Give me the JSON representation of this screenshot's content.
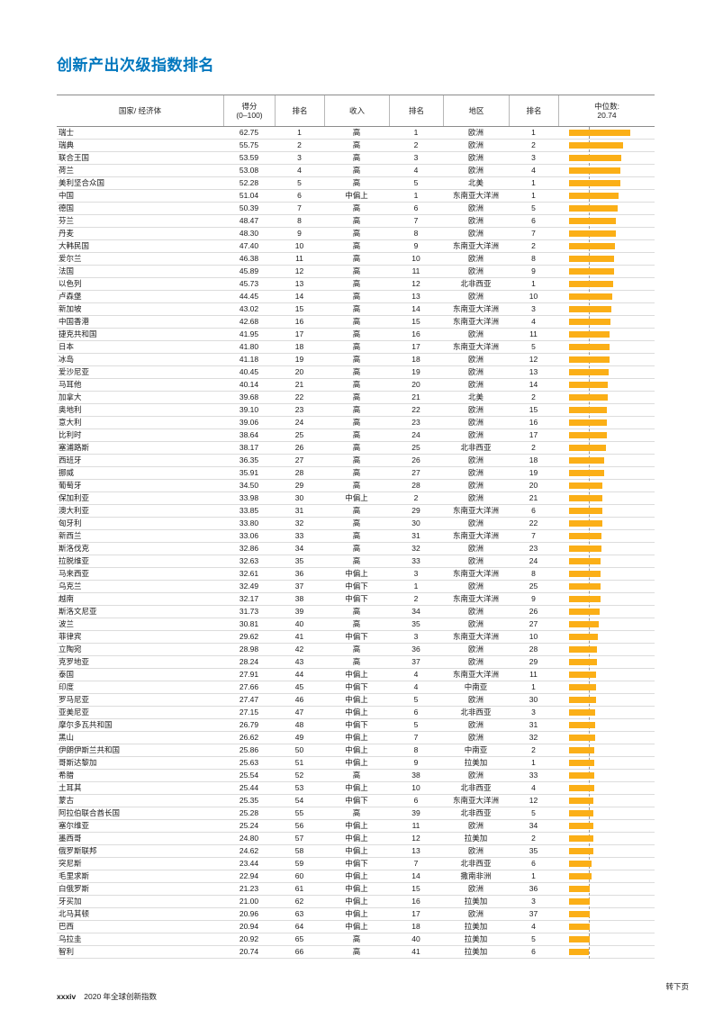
{
  "page": {
    "title": "创新产出次级指数排名"
  },
  "colors": {
    "title": "#0077BE",
    "bar": "#FBAF17",
    "median_line": "#9A9A9A"
  },
  "footer": {
    "page_label": "xxxiv",
    "edition": "2020 年全球创新指数",
    "continuation": "转下页"
  },
  "table": {
    "headers": {
      "country": "国家/ 经济体",
      "score": "得分\n(0–100)",
      "score_rank": "排名",
      "income": "收入",
      "income_rank": "排名",
      "region": "地区",
      "region_rank": "排名",
      "median": "中位数:\n20.74"
    },
    "median_value": 20.74,
    "columns": [
      "country",
      "score",
      "rank",
      "income",
      "income_rank",
      "region",
      "region_rank"
    ],
    "rows": [
      [
        "瑞士",
        "62.75",
        1,
        "高",
        1,
        "欧洲",
        1
      ],
      [
        "瑞典",
        "55.75",
        2,
        "高",
        2,
        "欧洲",
        2
      ],
      [
        "联合王国",
        "53.59",
        3,
        "高",
        3,
        "欧洲",
        3
      ],
      [
        "荷兰",
        "53.08",
        4,
        "高",
        4,
        "欧洲",
        4
      ],
      [
        "美利坚合众国",
        "52.28",
        5,
        "高",
        5,
        "北美",
        1
      ],
      [
        "中国",
        "51.04",
        6,
        "中偏上",
        1,
        "东南亚大洋洲",
        1
      ],
      [
        "德国",
        "50.39",
        7,
        "高",
        6,
        "欧洲",
        5
      ],
      [
        "芬兰",
        "48.47",
        8,
        "高",
        7,
        "欧洲",
        6
      ],
      [
        "丹麦",
        "48.30",
        9,
        "高",
        8,
        "欧洲",
        7
      ],
      [
        "大韩民国",
        "47.40",
        10,
        "高",
        9,
        "东南亚大洋洲",
        2
      ],
      [
        "爱尔兰",
        "46.38",
        11,
        "高",
        10,
        "欧洲",
        8
      ],
      [
        "法国",
        "45.89",
        12,
        "高",
        11,
        "欧洲",
        9
      ],
      [
        "以色列",
        "45.73",
        13,
        "高",
        12,
        "北非西亚",
        1
      ],
      [
        "卢森堡",
        "44.45",
        14,
        "高",
        13,
        "欧洲",
        10
      ],
      [
        "新加坡",
        "43.02",
        15,
        "高",
        14,
        "东南亚大洋洲",
        3
      ],
      [
        "中国香港",
        "42.68",
        16,
        "高",
        15,
        "东南亚大洋洲",
        4
      ],
      [
        "捷克共和国",
        "41.95",
        17,
        "高",
        16,
        "欧洲",
        11
      ],
      [
        "日本",
        "41.80",
        18,
        "高",
        17,
        "东南亚大洋洲",
        5
      ],
      [
        "冰岛",
        "41.18",
        19,
        "高",
        18,
        "欧洲",
        12
      ],
      [
        "爱沙尼亚",
        "40.45",
        20,
        "高",
        19,
        "欧洲",
        13
      ],
      [
        "马耳他",
        "40.14",
        21,
        "高",
        20,
        "欧洲",
        14
      ],
      [
        "加拿大",
        "39.68",
        22,
        "高",
        21,
        "北美",
        2
      ],
      [
        "奥地利",
        "39.10",
        23,
        "高",
        22,
        "欧洲",
        15
      ],
      [
        "意大利",
        "39.06",
        24,
        "高",
        23,
        "欧洲",
        16
      ],
      [
        "比利时",
        "38.64",
        25,
        "高",
        24,
        "欧洲",
        17
      ],
      [
        "塞浦路斯",
        "38.17",
        26,
        "高",
        25,
        "北非西亚",
        2
      ],
      [
        "西班牙",
        "36.35",
        27,
        "高",
        26,
        "欧洲",
        18
      ],
      [
        "挪威",
        "35.91",
        28,
        "高",
        27,
        "欧洲",
        19
      ],
      [
        "葡萄牙",
        "34.50",
        29,
        "高",
        28,
        "欧洲",
        20
      ],
      [
        "保加利亚",
        "33.98",
        30,
        "中偏上",
        2,
        "欧洲",
        21
      ],
      [
        "澳大利亚",
        "33.85",
        31,
        "高",
        29,
        "东南亚大洋洲",
        6
      ],
      [
        "匈牙利",
        "33.80",
        32,
        "高",
        30,
        "欧洲",
        22
      ],
      [
        "新西兰",
        "33.06",
        33,
        "高",
        31,
        "东南亚大洋洲",
        7
      ],
      [
        "斯洛伐克",
        "32.86",
        34,
        "高",
        32,
        "欧洲",
        23
      ],
      [
        "拉脱维亚",
        "32.63",
        35,
        "高",
        33,
        "欧洲",
        24
      ],
      [
        "马来西亚",
        "32.61",
        36,
        "中偏上",
        3,
        "东南亚大洋洲",
        8
      ],
      [
        "乌克兰",
        "32.49",
        37,
        "中偏下",
        1,
        "欧洲",
        25
      ],
      [
        "越南",
        "32.17",
        38,
        "中偏下",
        2,
        "东南亚大洋洲",
        9
      ],
      [
        "斯洛文尼亚",
        "31.73",
        39,
        "高",
        34,
        "欧洲",
        26
      ],
      [
        "波兰",
        "30.81",
        40,
        "高",
        35,
        "欧洲",
        27
      ],
      [
        "菲律宾",
        "29.62",
        41,
        "中偏下",
        3,
        "东南亚大洋洲",
        10
      ],
      [
        "立陶宛",
        "28.98",
        42,
        "高",
        36,
        "欧洲",
        28
      ],
      [
        "克罗地亚",
        "28.24",
        43,
        "高",
        37,
        "欧洲",
        29
      ],
      [
        "泰国",
        "27.91",
        44,
        "中偏上",
        4,
        "东南亚大洋洲",
        11
      ],
      [
        "印度",
        "27.66",
        45,
        "中偏下",
        4,
        "中南亚",
        1
      ],
      [
        "罗马尼亚",
        "27.47",
        46,
        "中偏上",
        5,
        "欧洲",
        30
      ],
      [
        "亚美尼亚",
        "27.15",
        47,
        "中偏上",
        6,
        "北非西亚",
        3
      ],
      [
        "摩尔多瓦共和国",
        "26.79",
        48,
        "中偏下",
        5,
        "欧洲",
        31
      ],
      [
        "黑山",
        "26.62",
        49,
        "中偏上",
        7,
        "欧洲",
        32
      ],
      [
        "伊朗伊斯兰共和国",
        "25.86",
        50,
        "中偏上",
        8,
        "中南亚",
        2
      ],
      [
        "哥斯达黎加",
        "25.63",
        51,
        "中偏上",
        9,
        "拉美加",
        1
      ],
      [
        "希腊",
        "25.54",
        52,
        "高",
        38,
        "欧洲",
        33
      ],
      [
        "土耳其",
        "25.44",
        53,
        "中偏上",
        10,
        "北非西亚",
        4
      ],
      [
        "蒙古",
        "25.35",
        54,
        "中偏下",
        6,
        "东南亚大洋洲",
        12
      ],
      [
        "阿拉伯联合酋长国",
        "25.28",
        55,
        "高",
        39,
        "北非西亚",
        5
      ],
      [
        "塞尔维亚",
        "25.24",
        56,
        "中偏上",
        11,
        "欧洲",
        34
      ],
      [
        "墨西哥",
        "24.80",
        57,
        "中偏上",
        12,
        "拉美加",
        2
      ],
      [
        "俄罗斯联邦",
        "24.62",
        58,
        "中偏上",
        13,
        "欧洲",
        35
      ],
      [
        "突尼斯",
        "23.44",
        59,
        "中偏下",
        7,
        "北非西亚",
        6
      ],
      [
        "毛里求斯",
        "22.94",
        60,
        "中偏上",
        14,
        "撒南非洲",
        1
      ],
      [
        "白俄罗斯",
        "21.23",
        61,
        "中偏上",
        15,
        "欧洲",
        36
      ],
      [
        "牙买加",
        "21.00",
        62,
        "中偏上",
        16,
        "拉美加",
        3
      ],
      [
        "北马其顿",
        "20.96",
        63,
        "中偏上",
        17,
        "欧洲",
        37
      ],
      [
        "巴西",
        "20.94",
        64,
        "中偏上",
        18,
        "拉美加",
        4
      ],
      [
        "乌拉圭",
        "20.92",
        65,
        "高",
        40,
        "拉美加",
        5
      ],
      [
        "智利",
        "20.74",
        66,
        "高",
        41,
        "拉美加",
        6
      ]
    ]
  }
}
